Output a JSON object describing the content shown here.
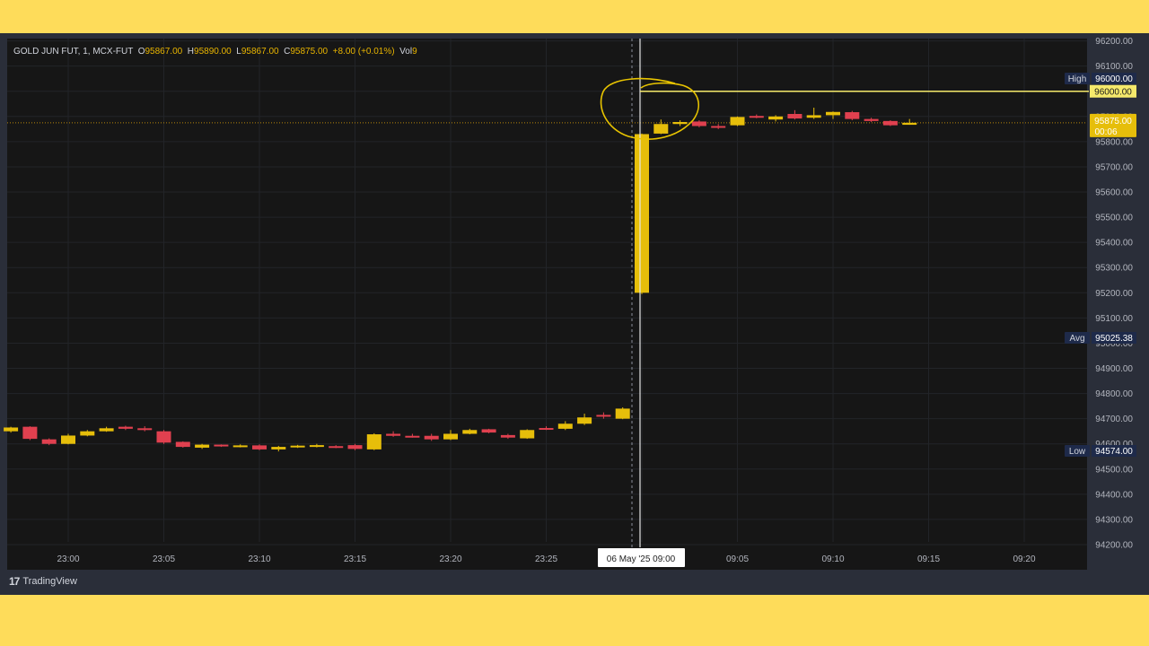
{
  "header": {
    "symbol": "GOLD JUN FUT, 1, MCX-FUT",
    "o_label": "O",
    "o_val": "95867.00",
    "h_label": "H",
    "h_val": "95890.00",
    "l_label": "L",
    "l_val": "95867.00",
    "c_label": "C",
    "c_val": "95875.00",
    "change": "+8.00 (+0.01%)",
    "vol_label": "Vol",
    "vol_val": "9"
  },
  "footer": {
    "brand": "TradingView",
    "logo_icon": "tradingview-logo-icon"
  },
  "crosshair_label": "06 May '25   09:00",
  "badges": {
    "high_label": "High",
    "high_value": "96000.00",
    "hline_value": "96000.00",
    "last_value": "95875.00",
    "countdown": "00:06",
    "avg_label": "Avg",
    "avg_value": "95025.38",
    "low_label": "Low",
    "low_value": "94574.00"
  },
  "colors": {
    "up": "#E6BE0A",
    "down": "#E0404F",
    "background": "#161616",
    "panel": "#2A2E39",
    "page": "#FEDC5A",
    "accent_line": "#F5E96B"
  },
  "chart_data": {
    "type": "candlestick",
    "title": "",
    "xlabel": "",
    "ylabel": "",
    "ylim": [
      94200,
      96200
    ],
    "y_ticks": [
      "94200.00",
      "94300.00",
      "94400.00",
      "94500.00",
      "94600.00",
      "94700.00",
      "94800.00",
      "94900.00",
      "95000.00",
      "95100.00",
      "95200.00",
      "95300.00",
      "95400.00",
      "95500.00",
      "95600.00",
      "95700.00",
      "95800.00",
      "95900.00",
      "96000.00",
      "96100.00",
      "96200.00"
    ],
    "x_ticks": [
      "23:00",
      "23:05",
      "23:10",
      "23:15",
      "23:20",
      "23:25",
      "09:00",
      "09:05",
      "09:10",
      "09:15",
      "09:20"
    ],
    "grid": true,
    "horizontal_line": 96000,
    "last_price": 95875,
    "candles": [
      {
        "t": "22:57",
        "o": 94650,
        "h": 94668,
        "l": 94645,
        "c": 94665
      },
      {
        "t": "22:58",
        "o": 94668,
        "h": 94670,
        "l": 94615,
        "c": 94620
      },
      {
        "t": "22:59",
        "o": 94618,
        "h": 94622,
        "l": 94595,
        "c": 94600
      },
      {
        "t": "23:00",
        "o": 94600,
        "h": 94640,
        "l": 94598,
        "c": 94633
      },
      {
        "t": "23:01",
        "o": 94633,
        "h": 94655,
        "l": 94630,
        "c": 94650
      },
      {
        "t": "23:02",
        "o": 94650,
        "h": 94668,
        "l": 94648,
        "c": 94662
      },
      {
        "t": "23:03",
        "o": 94668,
        "h": 94672,
        "l": 94655,
        "c": 94660
      },
      {
        "t": "23:04",
        "o": 94662,
        "h": 94670,
        "l": 94650,
        "c": 94655
      },
      {
        "t": "23:05",
        "o": 94650,
        "h": 94655,
        "l": 94600,
        "c": 94605
      },
      {
        "t": "23:06",
        "o": 94608,
        "h": 94610,
        "l": 94585,
        "c": 94588
      },
      {
        "t": "23:07",
        "o": 94585,
        "h": 94600,
        "l": 94580,
        "c": 94597
      },
      {
        "t": "23:08",
        "o": 94597,
        "h": 94598,
        "l": 94588,
        "c": 94592
      },
      {
        "t": "23:09",
        "o": 94590,
        "h": 94598,
        "l": 94586,
        "c": 94594
      },
      {
        "t": "23:10",
        "o": 94594,
        "h": 94598,
        "l": 94575,
        "c": 94578
      },
      {
        "t": "23:11",
        "o": 94578,
        "h": 94592,
        "l": 94570,
        "c": 94588
      },
      {
        "t": "23:12",
        "o": 94590,
        "h": 94596,
        "l": 94584,
        "c": 94593
      },
      {
        "t": "23:13",
        "o": 94592,
        "h": 94600,
        "l": 94586,
        "c": 94595
      },
      {
        "t": "23:14",
        "o": 94591,
        "h": 94595,
        "l": 94583,
        "c": 94587
      },
      {
        "t": "23:15",
        "o": 94595,
        "h": 94600,
        "l": 94575,
        "c": 94580
      },
      {
        "t": "23:16",
        "o": 94578,
        "h": 94642,
        "l": 94575,
        "c": 94638
      },
      {
        "t": "23:17",
        "o": 94640,
        "h": 94650,
        "l": 94628,
        "c": 94632
      },
      {
        "t": "23:18",
        "o": 94632,
        "h": 94640,
        "l": 94625,
        "c": 94630
      },
      {
        "t": "23:19",
        "o": 94632,
        "h": 94640,
        "l": 94612,
        "c": 94618
      },
      {
        "t": "23:20",
        "o": 94618,
        "h": 94655,
        "l": 94615,
        "c": 94640
      },
      {
        "t": "23:21",
        "o": 94640,
        "h": 94660,
        "l": 94638,
        "c": 94655
      },
      {
        "t": "23:22",
        "o": 94658,
        "h": 94660,
        "l": 94642,
        "c": 94645
      },
      {
        "t": "23:23",
        "o": 94635,
        "h": 94640,
        "l": 94620,
        "c": 94625
      },
      {
        "t": "23:24",
        "o": 94622,
        "h": 94658,
        "l": 94620,
        "c": 94655
      },
      {
        "t": "23:25",
        "o": 94663,
        "h": 94670,
        "l": 94655,
        "c": 94660
      },
      {
        "t": "23:26",
        "o": 94660,
        "h": 94690,
        "l": 94655,
        "c": 94680
      },
      {
        "t": "23:27",
        "o": 94680,
        "h": 94720,
        "l": 94675,
        "c": 94705
      },
      {
        "t": "23:28",
        "o": 94715,
        "h": 94725,
        "l": 94700,
        "c": 94710
      },
      {
        "t": "23:29",
        "o": 94700,
        "h": 94745,
        "l": 94698,
        "c": 94740
      },
      {
        "t": "09:00",
        "o": 95200,
        "h": 95832,
        "l": 95195,
        "c": 95830
      },
      {
        "t": "09:01",
        "o": 95832,
        "h": 95888,
        "l": 95830,
        "c": 95870
      },
      {
        "t": "09:02",
        "o": 95870,
        "h": 95885,
        "l": 95862,
        "c": 95878
      },
      {
        "t": "09:03",
        "o": 95880,
        "h": 95885,
        "l": 95857,
        "c": 95862
      },
      {
        "t": "09:04",
        "o": 95862,
        "h": 95870,
        "l": 95850,
        "c": 95855
      },
      {
        "t": "09:05",
        "o": 95865,
        "h": 95900,
        "l": 95862,
        "c": 95898
      },
      {
        "t": "09:06",
        "o": 95902,
        "h": 95908,
        "l": 95893,
        "c": 95895
      },
      {
        "t": "09:07",
        "o": 95888,
        "h": 95905,
        "l": 95880,
        "c": 95900
      },
      {
        "t": "09:08",
        "o": 95910,
        "h": 95925,
        "l": 95888,
        "c": 95892
      },
      {
        "t": "09:09",
        "o": 95895,
        "h": 95935,
        "l": 95890,
        "c": 95905
      },
      {
        "t": "09:10",
        "o": 95905,
        "h": 95920,
        "l": 95890,
        "c": 95918
      },
      {
        "t": "09:11",
        "o": 95917,
        "h": 95922,
        "l": 95885,
        "c": 95890
      },
      {
        "t": "09:12",
        "o": 95890,
        "h": 95895,
        "l": 95878,
        "c": 95882
      },
      {
        "t": "09:13",
        "o": 95882,
        "h": 95885,
        "l": 95862,
        "c": 95865
      },
      {
        "t": "09:14",
        "o": 95867,
        "h": 95890,
        "l": 95867,
        "c": 95875
      }
    ]
  }
}
